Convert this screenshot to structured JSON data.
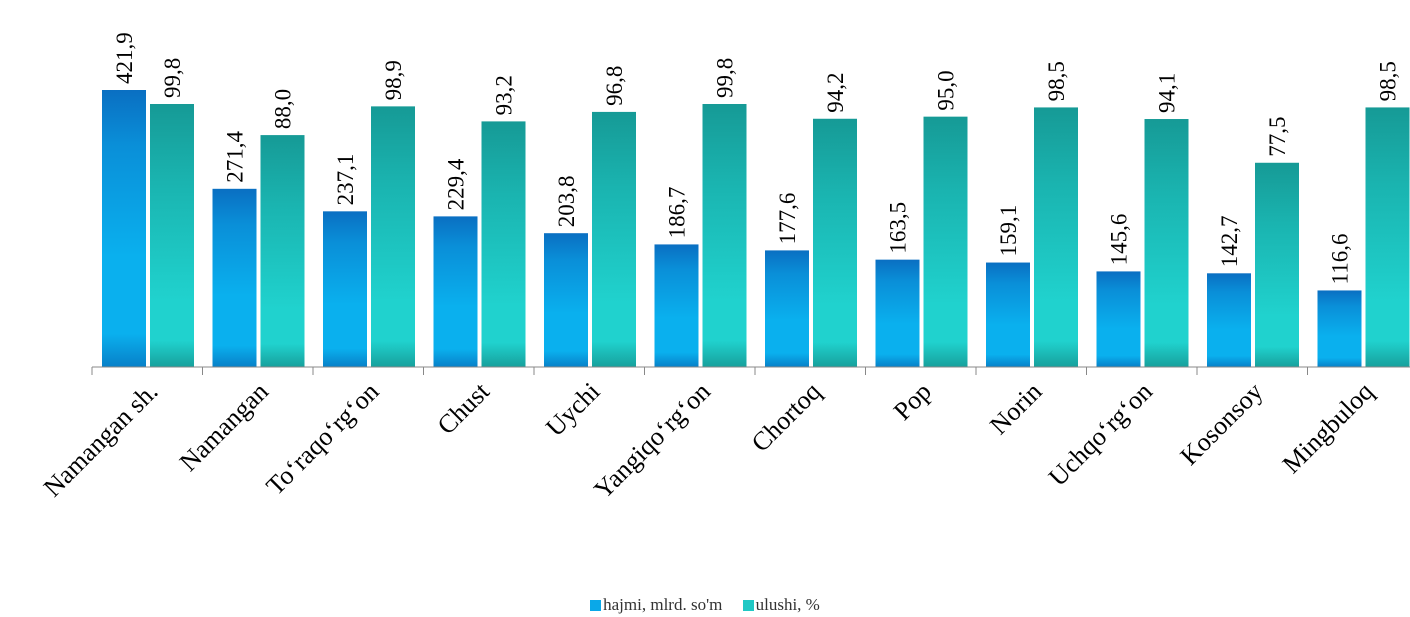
{
  "chart_data": {
    "type": "bar",
    "categories": [
      "Namangan sh.",
      "Namangan",
      "To‘raqo‘rg‘on",
      "Chust",
      "Uychi",
      "Yangiqo‘rg‘on",
      "Chortoq",
      "Pop",
      "Norin",
      "Uchqo‘rg‘on",
      "Kosonsoy",
      "Mingbuloq"
    ],
    "series": [
      {
        "name": "hajmi, mlrd. so'm",
        "values": [
          421.9,
          271.4,
          237.1,
          229.4,
          203.8,
          186.7,
          177.6,
          163.5,
          159.1,
          145.6,
          142.7,
          116.6
        ],
        "value_labels": [
          "421,9",
          "271,4",
          "237,1",
          "229,4",
          "203,8",
          "186,7",
          "177,6",
          "163,5",
          "159,1",
          "145,6",
          "142,7",
          "116,6"
        ],
        "color": "#0aa8e8"
      },
      {
        "name": "ulushi, %",
        "values": [
          99.8,
          88.0,
          98.9,
          93.2,
          96.8,
          99.8,
          94.2,
          95.0,
          98.5,
          94.1,
          77.5,
          98.5
        ],
        "value_labels": [
          "99,8",
          "88,0",
          "98,9",
          "93,2",
          "96,8",
          "99,8",
          "94,2",
          "95,0",
          "98,5",
          "94,1",
          "77,5",
          "98,5"
        ],
        "color": "#20c8c4"
      }
    ],
    "legend_position": "bottom",
    "grid": false
  }
}
